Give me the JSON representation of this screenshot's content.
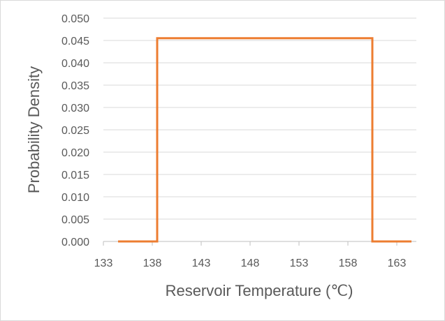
{
  "chart_data": {
    "type": "line",
    "title": "",
    "xlabel": "Reservoir Temperature (℃)",
    "ylabel": "Probability Density",
    "xlim": [
      133,
      165
    ],
    "ylim": [
      0,
      0.05
    ],
    "x_ticks": [
      133,
      138,
      143,
      148,
      153,
      158,
      163
    ],
    "y_ticks": [
      "0.000",
      "0.005",
      "0.010",
      "0.015",
      "0.020",
      "0.025",
      "0.030",
      "0.035",
      "0.040",
      "0.045",
      "0.050"
    ],
    "grid": "horizontal",
    "legend": "none",
    "series": [
      {
        "color": "#ED7D31",
        "x": [
          134.5,
          138.5,
          138.5,
          160.5,
          160.5,
          164.5
        ],
        "y": [
          0,
          0,
          0.0455,
          0.0455,
          0,
          0
        ]
      }
    ]
  }
}
